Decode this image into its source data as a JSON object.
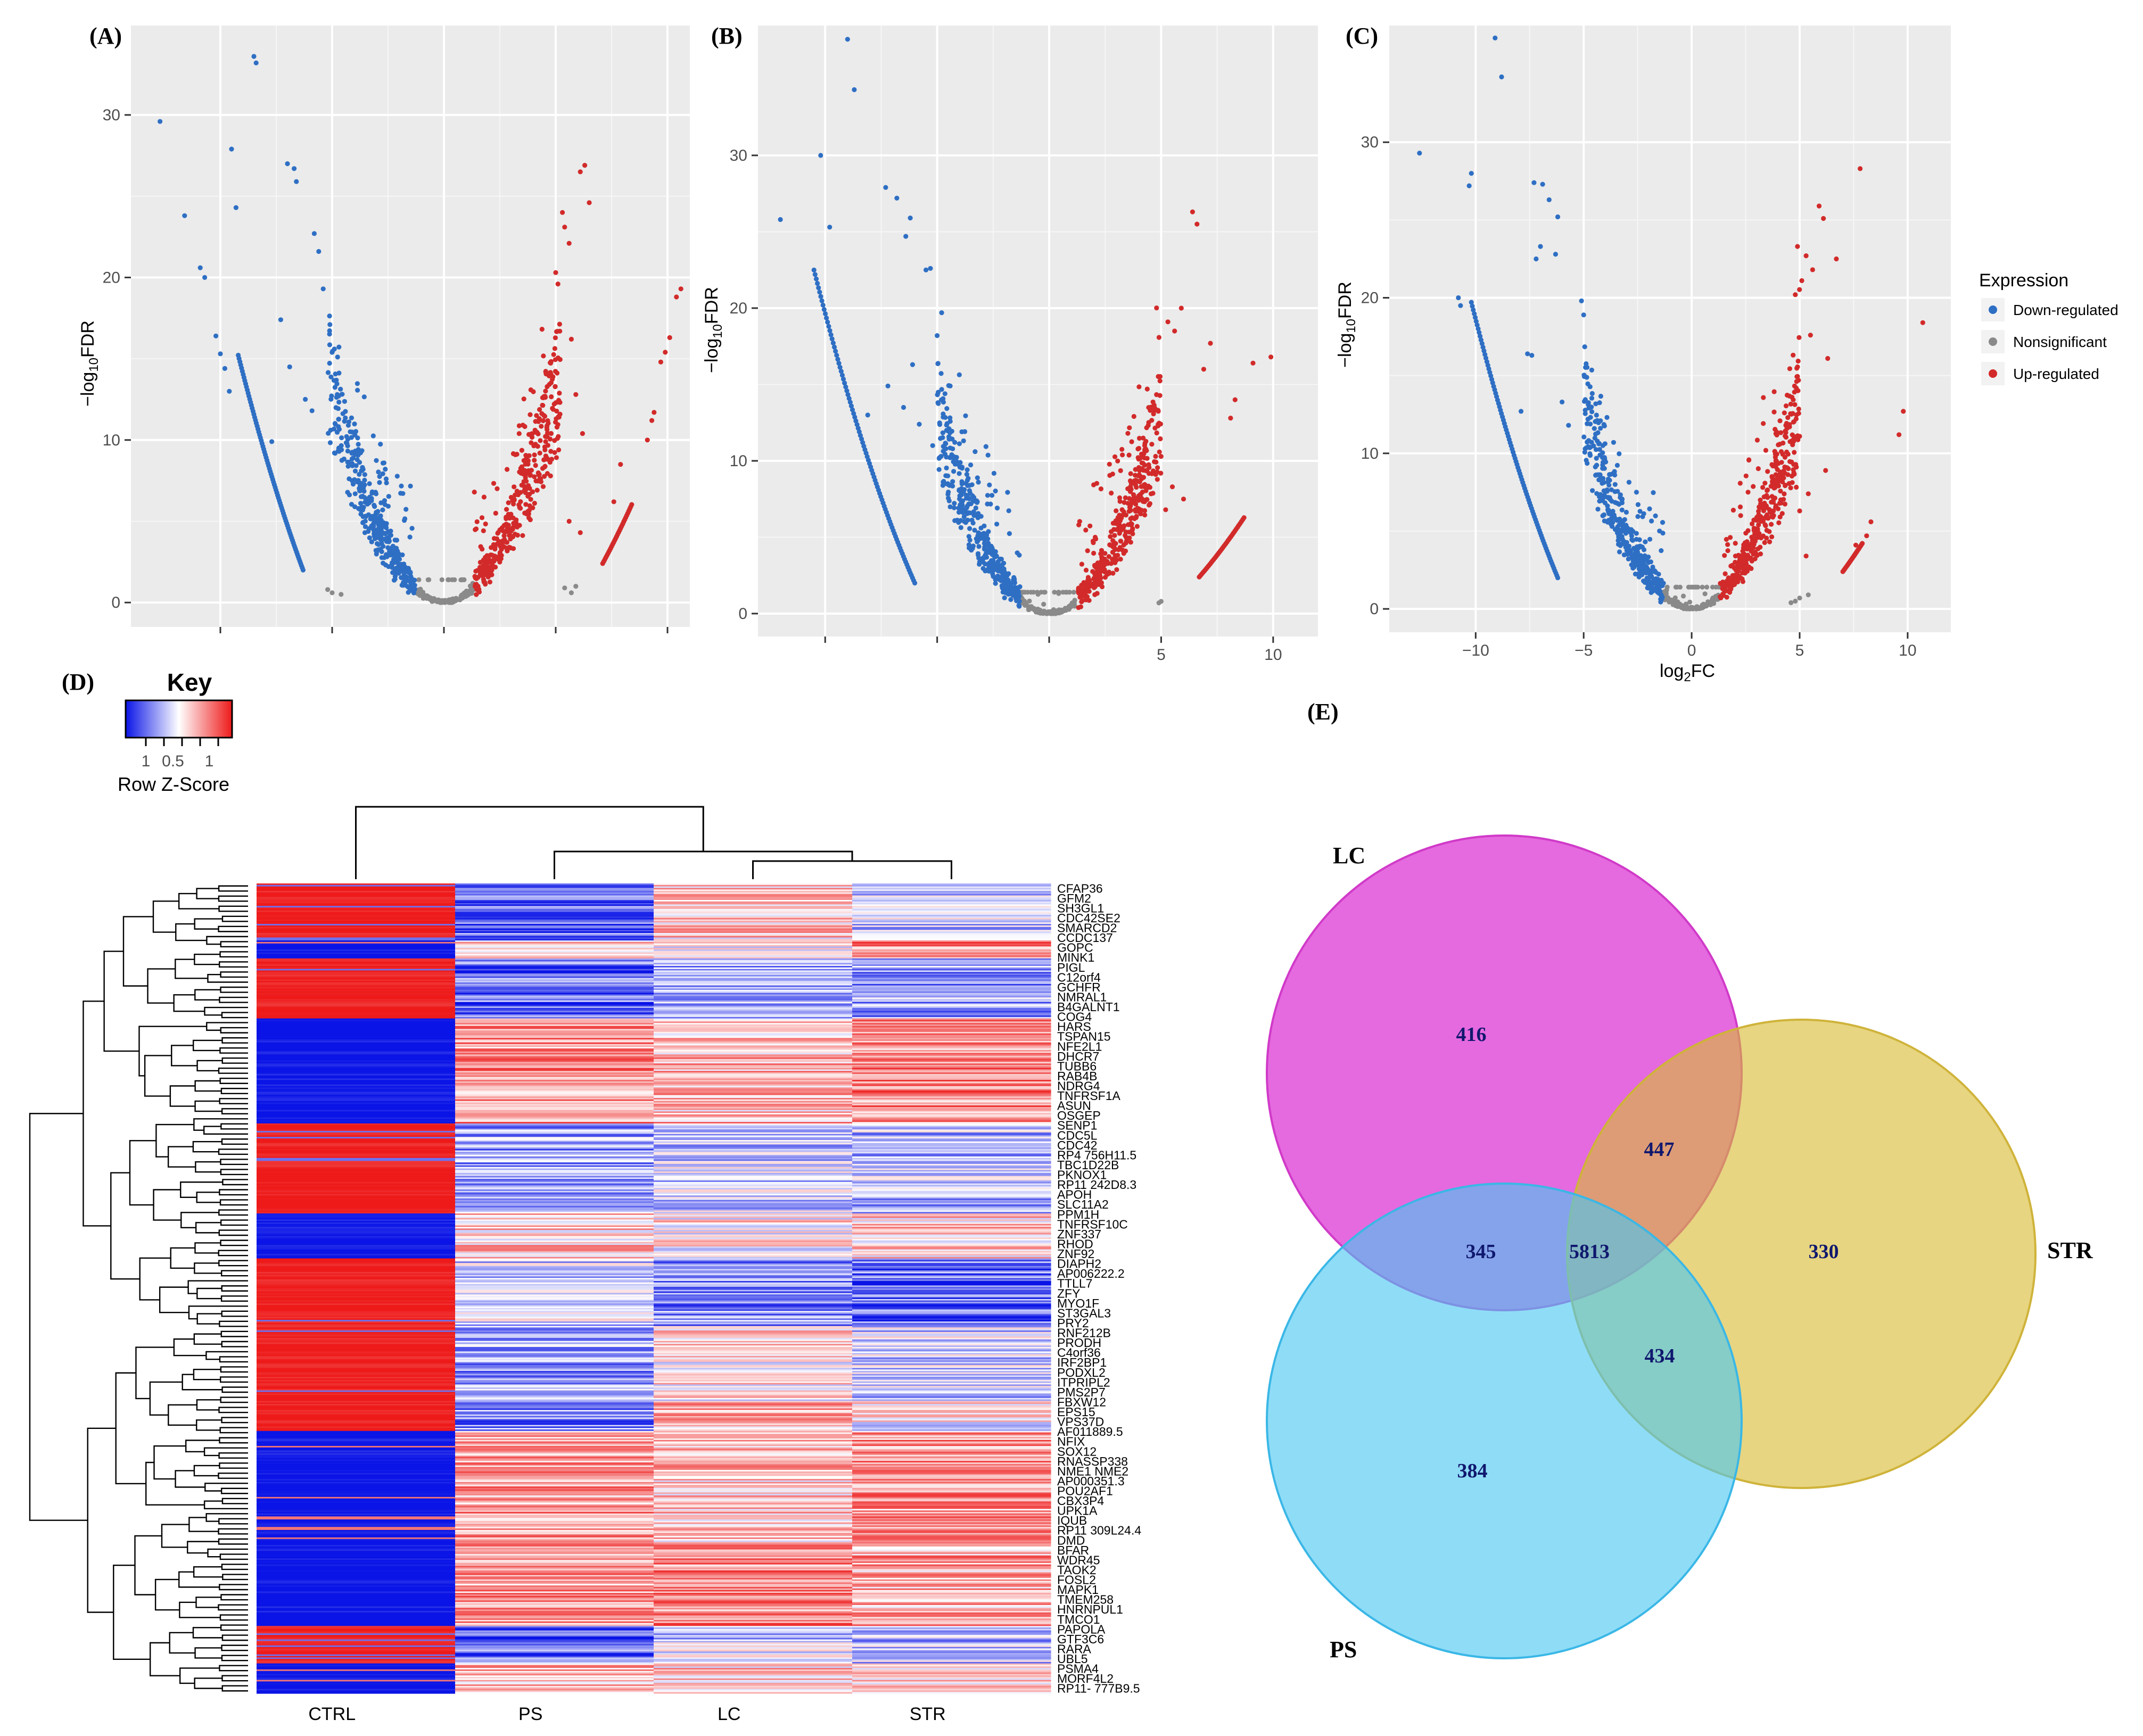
{
  "chart_data": [
    {
      "type": "scatter",
      "panel": "(A)",
      "title": "",
      "xlabel": "",
      "ylabel": "-log10FDR",
      "xlim": [
        -14,
        11
      ],
      "ylim": [
        -1.5,
        35.5
      ],
      "xticks": [
        -10,
        -5,
        0,
        5,
        10
      ],
      "yticks": [
        0,
        10,
        20,
        30
      ],
      "show_xtick_labels": false,
      "legend": "none",
      "series": [
        {
          "name": "Down-regulated",
          "color": "#2e6fc4",
          "points": [
            [
              -12.7,
              29.6
            ],
            [
              -11.6,
              23.8
            ],
            [
              -10.9,
              20.6
            ],
            [
              -10.7,
              20.0
            ],
            [
              -10.2,
              16.4
            ],
            [
              -10.0,
              15.3
            ],
            [
              -9.8,
              14.4
            ],
            [
              -9.6,
              13.0
            ],
            [
              -9.5,
              27.9
            ],
            [
              -9.3,
              24.3
            ],
            [
              -8.5,
              33.6
            ],
            [
              -8.4,
              33.2
            ],
            [
              -7.7,
              9.9
            ],
            [
              -7.3,
              17.4
            ],
            [
              -7.0,
              27.0
            ],
            [
              -6.7,
              26.7
            ],
            [
              -6.6,
              25.9
            ],
            [
              -5.8,
              22.7
            ],
            [
              -5.6,
              21.6
            ],
            [
              -5.9,
              11.8
            ],
            [
              -5.4,
              19.3
            ],
            [
              -6.9,
              14.5
            ],
            [
              -6.2,
              12.5
            ],
            [
              -5.1,
              17.1
            ],
            [
              -4.9,
              15.6
            ]
          ],
          "curve": {
            "k": 0.98,
            "xmin": -9.2,
            "xmax": -6.3,
            "n": 80
          },
          "cloud": {
            "xmin": -5.2,
            "xmax": -1.3,
            "n": 380,
            "spread": 1.2
          }
        },
        {
          "name": "Nonsignificant",
          "color": "#8a8a8a",
          "points": [
            [
              -5.2,
              0.8
            ],
            [
              -5.0,
              0.6
            ],
            [
              -4.6,
              0.5
            ],
            [
              5.4,
              0.9
            ],
            [
              5.7,
              0.6
            ],
            [
              5.9,
              1.0
            ]
          ],
          "cloud": {
            "xmin": -1.3,
            "xmax": 1.3,
            "n": 140,
            "spread": 0.5
          }
        },
        {
          "name": "Up-regulated",
          "color": "#d22a2a",
          "points": [
            [
              6.1,
              26.5
            ],
            [
              6.3,
              26.9
            ],
            [
              6.5,
              24.6
            ],
            [
              5.4,
              23.1
            ],
            [
              5.3,
              24.0
            ],
            [
              5.6,
              22.1
            ],
            [
              5.0,
              20.3
            ],
            [
              5.1,
              19.6
            ],
            [
              5.7,
              16.2
            ],
            [
              5.9,
              12.8
            ],
            [
              6.2,
              10.4
            ],
            [
              10.6,
              19.3
            ],
            [
              10.4,
              18.8
            ],
            [
              10.1,
              16.3
            ],
            [
              9.9,
              15.4
            ],
            [
              9.7,
              14.8
            ],
            [
              6.1,
              4.3
            ],
            [
              5.6,
              5.0
            ],
            [
              7.6,
              6.2
            ],
            [
              7.9,
              8.5
            ],
            [
              9.4,
              11.7
            ],
            [
              9.3,
              11.2
            ],
            [
              9.1,
              10.0
            ]
          ],
          "curve": {
            "k": 0.6,
            "xmin": 7.1,
            "xmax": 8.4,
            "n": 30
          },
          "cloud": {
            "xmin": 1.3,
            "xmax": 5.2,
            "n": 380,
            "spread": 1.2
          }
        }
      ]
    },
    {
      "type": "scatter",
      "panel": "(B)",
      "title": "",
      "xlabel": "",
      "ylabel": "-log10FDR",
      "xlim": [
        -13,
        12
      ],
      "ylim": [
        -1.5,
        38.5
      ],
      "xticks": [
        -10,
        -5,
        0,
        5,
        10
      ],
      "yticks": [
        0,
        10,
        20,
        30
      ],
      "show_xtick_labels": true,
      "xtick_labels_shown": [
        "5",
        "10"
      ],
      "legend": "none",
      "series": [
        {
          "name": "Down-regulated",
          "color": "#2e6fc4",
          "points": [
            [
              -12.0,
              25.8
            ],
            [
              -10.2,
              30.0
            ],
            [
              -9.8,
              25.3
            ],
            [
              -9.0,
              37.6
            ],
            [
              -8.7,
              34.3
            ],
            [
              -7.3,
              27.9
            ],
            [
              -6.8,
              27.2
            ],
            [
              -6.2,
              25.9
            ],
            [
              -6.4,
              24.7
            ],
            [
              -5.5,
              22.5
            ],
            [
              -5.3,
              22.6
            ],
            [
              -6.1,
              16.3
            ],
            [
              -5.0,
              18.2
            ],
            [
              -4.8,
              19.7
            ],
            [
              -8.1,
              13.0
            ],
            [
              -7.2,
              14.9
            ],
            [
              -6.5,
              13.5
            ],
            [
              -5.8,
              12.4
            ],
            [
              -5.2,
              11.0
            ]
          ],
          "curve": {
            "k": 0.92,
            "xmin": -10.5,
            "xmax": -6.0,
            "n": 90
          },
          "cloud": {
            "xmin": -5.0,
            "xmax": -1.3,
            "n": 380,
            "spread": 1.2
          }
        },
        {
          "name": "Nonsignificant",
          "color": "#8a8a8a",
          "points": [
            [
              5.0,
              0.8
            ],
            [
              4.9,
              0.7
            ]
          ],
          "cloud": {
            "xmin": -1.3,
            "xmax": 1.3,
            "n": 140,
            "spread": 0.5
          }
        },
        {
          "name": "Up-regulated",
          "color": "#d22a2a",
          "points": [
            [
              6.4,
              26.3
            ],
            [
              6.6,
              25.5
            ],
            [
              5.9,
              20.0
            ],
            [
              5.3,
              19.1
            ],
            [
              5.6,
              18.5
            ],
            [
              7.2,
              17.7
            ],
            [
              6.9,
              16.0
            ],
            [
              9.9,
              16.8
            ],
            [
              9.1,
              16.4
            ],
            [
              5.5,
              8.3
            ],
            [
              6.0,
              7.5
            ],
            [
              5.2,
              6.8
            ],
            [
              8.3,
              14.0
            ],
            [
              8.1,
              12.8
            ]
          ],
          "curve": {
            "k": 0.42,
            "xmin": 6.7,
            "xmax": 8.7,
            "n": 35
          },
          "cloud": {
            "xmin": 1.3,
            "xmax": 5.0,
            "n": 380,
            "spread": 1.2
          }
        }
      ]
    },
    {
      "type": "scatter",
      "panel": "(C)",
      "title": "",
      "xlabel": "log2FC",
      "ylabel": "-log10FDR",
      "xlim": [
        -14,
        12
      ],
      "ylim": [
        -1.5,
        37.5
      ],
      "xticks": [
        -10,
        -5,
        0,
        5,
        10
      ],
      "yticks": [
        0,
        10,
        20,
        30
      ],
      "show_xtick_labels": true,
      "legend": "right",
      "legend_title": "Expression",
      "series": [
        {
          "name": "Down-regulated",
          "color": "#2e6fc4",
          "points": [
            [
              -12.6,
              29.3
            ],
            [
              -10.2,
              28.0
            ],
            [
              -10.3,
              27.2
            ],
            [
              -9.1,
              36.7
            ],
            [
              -8.8,
              34.2
            ],
            [
              -7.3,
              27.4
            ],
            [
              -6.9,
              27.3
            ],
            [
              -6.6,
              26.3
            ],
            [
              -6.2,
              25.2
            ],
            [
              -7.0,
              23.3
            ],
            [
              -7.2,
              22.5
            ],
            [
              -6.3,
              22.8
            ],
            [
              -10.8,
              20.0
            ],
            [
              -10.7,
              19.5
            ],
            [
              -5.1,
              19.8
            ],
            [
              -5.0,
              18.9
            ],
            [
              -7.6,
              16.4
            ],
            [
              -7.4,
              16.3
            ],
            [
              -7.9,
              12.7
            ],
            [
              -6.0,
              13.3
            ],
            [
              -5.7,
              11.8
            ],
            [
              -4.8,
              12.2
            ]
          ],
          "curve": {
            "k": 0.9,
            "xmin": -10.2,
            "xmax": -6.2,
            "n": 90
          },
          "cloud": {
            "xmin": -5.0,
            "xmax": -1.3,
            "n": 380,
            "spread": 1.2
          }
        },
        {
          "name": "Nonsignificant",
          "color": "#8a8a8a",
          "points": [
            [
              4.6,
              0.4
            ],
            [
              4.8,
              0.5
            ],
            [
              5.0,
              0.7
            ],
            [
              5.4,
              0.9
            ]
          ],
          "cloud": {
            "xmin": -1.3,
            "xmax": 1.3,
            "n": 140,
            "spread": 0.5
          }
        },
        {
          "name": "Up-regulated",
          "color": "#d22a2a",
          "points": [
            [
              7.8,
              28.3
            ],
            [
              5.9,
              25.9
            ],
            [
              6.1,
              25.1
            ],
            [
              4.9,
              23.3
            ],
            [
              5.3,
              22.7
            ],
            [
              5.6,
              21.8
            ],
            [
              6.7,
              22.5
            ],
            [
              5.1,
              21.1
            ],
            [
              4.8,
              20.2
            ],
            [
              5.5,
              17.6
            ],
            [
              6.3,
              16.1
            ],
            [
              9.8,
              12.7
            ],
            [
              9.6,
              11.2
            ],
            [
              10.7,
              18.4
            ],
            [
              6.2,
              8.9
            ],
            [
              5.4,
              7.4
            ],
            [
              5.0,
              6.3
            ],
            [
              5.3,
              3.4
            ],
            [
              8.3,
              5.6
            ],
            [
              8.1,
              4.7
            ],
            [
              7.6,
              4.1
            ]
          ],
          "curve": {
            "k": 0.45,
            "xmin": 7.0,
            "xmax": 7.9,
            "n": 22
          },
          "cloud": {
            "xmin": 1.3,
            "xmax": 5.0,
            "n": 380,
            "spread": 1.2
          }
        }
      ]
    },
    {
      "type": "heatmap",
      "panel": "(D)",
      "title": "",
      "columns": [
        "CTRL",
        "PS",
        "LC",
        "STR"
      ],
      "legend_title": "Key",
      "legend_ticks": [
        "1",
        "0.5",
        "1"
      ],
      "legend_label": "Row Z-Score",
      "colormap": [
        "#0a14e6",
        "#ffffff",
        "#ee1a1a"
      ],
      "blocks": [
        {
          "rows": 38,
          "pattern": [
            1,
            -0.7,
            0.2,
            -0.2
          ]
        },
        {
          "rows": 12,
          "pattern": [
            -1,
            0.3,
            0.1,
            0.5
          ]
        },
        {
          "rows": 40,
          "pattern": [
            1,
            -0.6,
            -0.3,
            -0.4
          ]
        },
        {
          "rows": 70,
          "pattern": [
            -1,
            0.45,
            0.3,
            0.5
          ]
        },
        {
          "rows": 60,
          "pattern": [
            1,
            -0.4,
            -0.2,
            -0.3
          ]
        },
        {
          "rows": 30,
          "pattern": [
            -1,
            0.2,
            0.1,
            0.2
          ]
        },
        {
          "rows": 45,
          "pattern": [
            1,
            -0.2,
            -0.5,
            -0.6
          ]
        },
        {
          "rows": 50,
          "pattern": [
            1,
            -0.4,
            0.1,
            -0.2
          ]
        },
        {
          "rows": 20,
          "pattern": [
            1,
            -0.5,
            0.3,
            0.0
          ]
        },
        {
          "rows": 75,
          "pattern": [
            -1,
            0.4,
            0.25,
            0.45
          ]
        },
        {
          "rows": 55,
          "pattern": [
            -1,
            0.45,
            0.5,
            0.35
          ]
        },
        {
          "rows": 25,
          "pattern": [
            1,
            -0.6,
            -0.2,
            -0.3
          ]
        },
        {
          "rows": 20,
          "pattern": [
            -1,
            0.3,
            0.2,
            0.2
          ]
        }
      ],
      "row_labels": [
        "CFAP36",
        "GFM2",
        "SH3GL1",
        "CDC42SE2",
        "SMARCD2",
        "CCDC137",
        "GOPC",
        "MINK1",
        "PIGL",
        "C12orf4",
        "GCHFR",
        "NMRAL1",
        "B4GALNT1",
        "COG4",
        "HARS",
        "TSPAN15",
        "NFE2L1",
        "DHCR7",
        "TUBB6",
        "RAB4B",
        "NDRG4",
        "TNFRSF1A",
        "ASUN",
        "OSGEP",
        "SENP1",
        "CDC5L",
        "CDC42",
        "RP4_756H11.5",
        "TBC1D22B",
        "PKNOX1",
        "RP11_242D8.3",
        "APOH",
        "SLC11A2",
        "PPM1H",
        "TNFRSF10C",
        "ZNF337",
        "RHOD",
        "ZNF92",
        "DIAPH2",
        "AP006222.2",
        "TTLL7",
        "ZFY",
        "MYO1F",
        "ST3GAL3",
        "PRY2",
        "RNF212B",
        "PRODH",
        "C4orf36",
        "IRF2BP1",
        "PODXL2",
        "ITPRIPL2",
        "PMS2P7",
        "FBXW12",
        "EPS15",
        "VPS37D",
        "AF011889.5",
        "NFIX",
        "SOX12",
        "RNASSP338",
        "NME1_NME2",
        "AP000351.3",
        "POU2AF1",
        "CBX3P4",
        "UPK1A",
        "IQUB",
        "RP11_309L24.4",
        "DMD",
        "BFAR",
        "WDR45",
        "TAOK2",
        "FOSL2",
        "MAPK1",
        "TMEM258",
        "HNRNPUL1",
        "TMCO1",
        "PAPOLA",
        "GTF3C6",
        "RARA",
        "UBL5",
        "PSMA4",
        "MORF4L2",
        "RP11-_777B9.5"
      ]
    },
    {
      "type": "venn",
      "panel": "(E)",
      "title": "",
      "sets": [
        {
          "name": "LC",
          "color": "#de3fd6"
        },
        {
          "name": "STR",
          "color": "#dcc24a"
        },
        {
          "name": "PS",
          "color": "#45c4f0"
        }
      ],
      "regions": {
        "LC_only": 416,
        "STR_only": 330,
        "PS_only": 384,
        "LC_STR": 447,
        "LC_PS": 345,
        "PS_STR": 434,
        "LC_PS_STR": 5813
      }
    }
  ],
  "legend": {
    "title": "Expression",
    "items": [
      {
        "label": "Down-regulated",
        "color": "#2e6fc4"
      },
      {
        "label": "Nonsignificant",
        "color": "#8a8a8a"
      },
      {
        "label": "Up-regulated",
        "color": "#d22a2a"
      }
    ]
  }
}
